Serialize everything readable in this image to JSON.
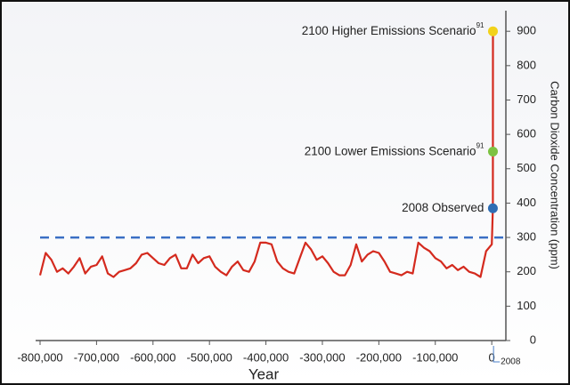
{
  "chart_data": {
    "type": "line",
    "x_label": "Year",
    "y_label": "Carbon Dioxide Concentration (ppm)",
    "xlim": [
      -800000,
      25000
    ],
    "ylim": [
      0,
      960
    ],
    "xticks": [
      {
        "value": -800000,
        "label": "-800,000"
      },
      {
        "value": -700000,
        "label": "-700,000"
      },
      {
        "value": -600000,
        "label": "-600,000"
      },
      {
        "value": -500000,
        "label": "-500,000"
      },
      {
        "value": -400000,
        "label": "-400,000"
      },
      {
        "value": -300000,
        "label": "-300,000"
      },
      {
        "value": -200000,
        "label": "-200,000"
      },
      {
        "value": -100000,
        "label": "-100,000"
      },
      0
    ],
    "yticks": [
      0,
      100,
      200,
      300,
      400,
      500,
      600,
      700,
      800,
      900
    ],
    "series": [
      {
        "color": "#d42a1e",
        "x": [
          -800000,
          -790000,
          -780000,
          -770000,
          -760000,
          -750000,
          -740000,
          -730000,
          -720000,
          -710000,
          -700000,
          -690000,
          -680000,
          -670000,
          -660000,
          -650000,
          -640000,
          -630000,
          -620000,
          -610000,
          -600000,
          -590000,
          -580000,
          -570000,
          -560000,
          -550000,
          -540000,
          -530000,
          -520000,
          -510000,
          -500000,
          -490000,
          -480000,
          -470000,
          -460000,
          -450000,
          -440000,
          -430000,
          -420000,
          -410000,
          -400000,
          -390000,
          -380000,
          -370000,
          -360000,
          -350000,
          -340000,
          -330000,
          -320000,
          -310000,
          -300000,
          -290000,
          -280000,
          -270000,
          -260000,
          -250000,
          -240000,
          -230000,
          -220000,
          -210000,
          -200000,
          -190000,
          -180000,
          -170000,
          -160000,
          -150000,
          -140000,
          -130000,
          -120000,
          -110000,
          -100000,
          -90000,
          -80000,
          -70000,
          -60000,
          -50000,
          -40000,
          -30000,
          -20000,
          -10000,
          0,
          2008,
          2100
        ],
        "values": [
          190,
          255,
          235,
          200,
          210,
          195,
          215,
          240,
          195,
          215,
          220,
          245,
          195,
          185,
          200,
          205,
          210,
          225,
          250,
          255,
          240,
          225,
          220,
          240,
          250,
          210,
          210,
          250,
          225,
          240,
          245,
          215,
          200,
          190,
          215,
          230,
          205,
          200,
          230,
          285,
          285,
          280,
          230,
          210,
          200,
          195,
          240,
          285,
          265,
          235,
          245,
          225,
          200,
          190,
          190,
          220,
          280,
          230,
          250,
          260,
          255,
          230,
          200,
          195,
          190,
          200,
          195,
          285,
          270,
          260,
          240,
          230,
          210,
          220,
          205,
          215,
          200,
          195,
          185,
          260,
          280,
          385,
          900
        ]
      }
    ],
    "reference_line": {
      "value": 300,
      "color": "#3a6fc4"
    },
    "points": [
      {
        "label": "2100 Higher Emissions Scenario",
        "sup": "91",
        "x": 2100,
        "value": 900,
        "color": "#f2d21b"
      },
      {
        "label": "2100 Lower Emissions Scenario",
        "sup": "91",
        "x": 2100,
        "value": 550,
        "color": "#7dc242"
      },
      {
        "label": "2008 Observed",
        "x": 2008,
        "value": 385,
        "color": "#2e6db4"
      }
    ],
    "annotation": {
      "text": "2008",
      "color": "#4a7fc8"
    }
  }
}
